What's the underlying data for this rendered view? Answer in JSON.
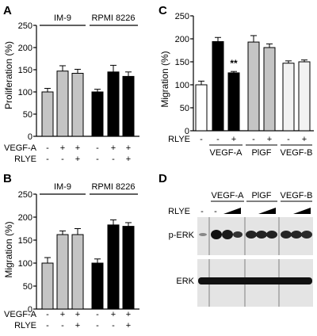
{
  "panels": {
    "A": {
      "letter": "A",
      "ylabel": "Proliferation (%)",
      "group_labels": [
        "IM-9",
        "RPMI 8226"
      ],
      "row_labels": [
        "VEGF-A",
        "RLYE"
      ],
      "row_signs": [
        [
          "-",
          "+",
          "+",
          "-",
          "+",
          "+"
        ],
        [
          "-",
          "-",
          "+",
          "-",
          "-",
          "+"
        ]
      ],
      "yticks": [
        "0",
        "50",
        "100",
        "150",
        "200",
        "250"
      ]
    },
    "B": {
      "letter": "B",
      "ylabel": "Migration (%)",
      "group_labels": [
        "IM-9",
        "RPMI 8226"
      ],
      "row_labels": [
        "VEGF-A",
        "RLYE"
      ],
      "row_signs": [
        [
          "-",
          "+",
          "+",
          "-",
          "+",
          "+"
        ],
        [
          "-",
          "-",
          "+",
          "-",
          "-",
          "+"
        ]
      ],
      "yticks": [
        "0",
        "50",
        "100",
        "150",
        "200",
        "250"
      ]
    },
    "C": {
      "letter": "C",
      "ylabel": "Migration (%)",
      "row_label": "RLYE",
      "row_signs": [
        "-",
        "-",
        "+",
        "-",
        "+",
        "-",
        "+"
      ],
      "group_labels": [
        "VEGF-A",
        "PlGF",
        "VEGF-B"
      ],
      "annotation": "**",
      "yticks": [
        "0",
        "50",
        "100",
        "150",
        "200",
        "250"
      ]
    },
    "D": {
      "letter": "D",
      "group_labels": [
        "VEGF-A",
        "PlGF",
        "VEGF-B"
      ],
      "row_label": "RLYE",
      "row_signs": [
        "-",
        "-"
      ],
      "band_labels": [
        "p-ERK",
        "ERK"
      ]
    }
  },
  "chart_data": [
    {
      "type": "bar",
      "panel": "A",
      "ylabel": "Proliferation (%)",
      "ylim": [
        0,
        250
      ],
      "categories": [
        "IM-9 -/-",
        "IM-9 +/-",
        "IM-9 +/+",
        "RPMI 8226 -/-",
        "RPMI 8226 +/-",
        "RPMI 8226 +/+"
      ],
      "values": [
        100,
        147,
        142,
        100,
        145,
        135
      ],
      "errors": [
        8,
        12,
        9,
        6,
        15,
        10
      ],
      "colors": [
        "#c4c4c4",
        "#c4c4c4",
        "#c4c4c4",
        "#000000",
        "#000000",
        "#000000"
      ]
    },
    {
      "type": "bar",
      "panel": "B",
      "ylabel": "Migration (%)",
      "ylim": [
        0,
        250
      ],
      "categories": [
        "IM-9 -/-",
        "IM-9 +/-",
        "IM-9 +/+",
        "RPMI 8226 -/-",
        "RPMI 8226 +/-",
        "RPMI 8226 +/+"
      ],
      "values": [
        100,
        162,
        162,
        100,
        183,
        180
      ],
      "errors": [
        12,
        8,
        13,
        9,
        11,
        8
      ],
      "colors": [
        "#c4c4c4",
        "#c4c4c4",
        "#c4c4c4",
        "#000000",
        "#000000",
        "#000000"
      ]
    },
    {
      "type": "bar",
      "panel": "C",
      "ylabel": "Migration (%)",
      "ylim": [
        0,
        250
      ],
      "categories": [
        "-",
        "VEGF-A -",
        "VEGF-A +",
        "PlGF -",
        "PlGF +",
        "VEGF-B -",
        "VEGF-B +"
      ],
      "values": [
        100,
        194,
        126,
        193,
        181,
        147,
        150
      ],
      "errors": [
        8,
        9,
        3,
        14,
        8,
        5,
        4
      ],
      "colors": [
        "#ffffff",
        "#000000",
        "#000000",
        "#c4c4c4",
        "#c4c4c4",
        "#f2f2f2",
        "#f2f2f2"
      ]
    }
  ]
}
